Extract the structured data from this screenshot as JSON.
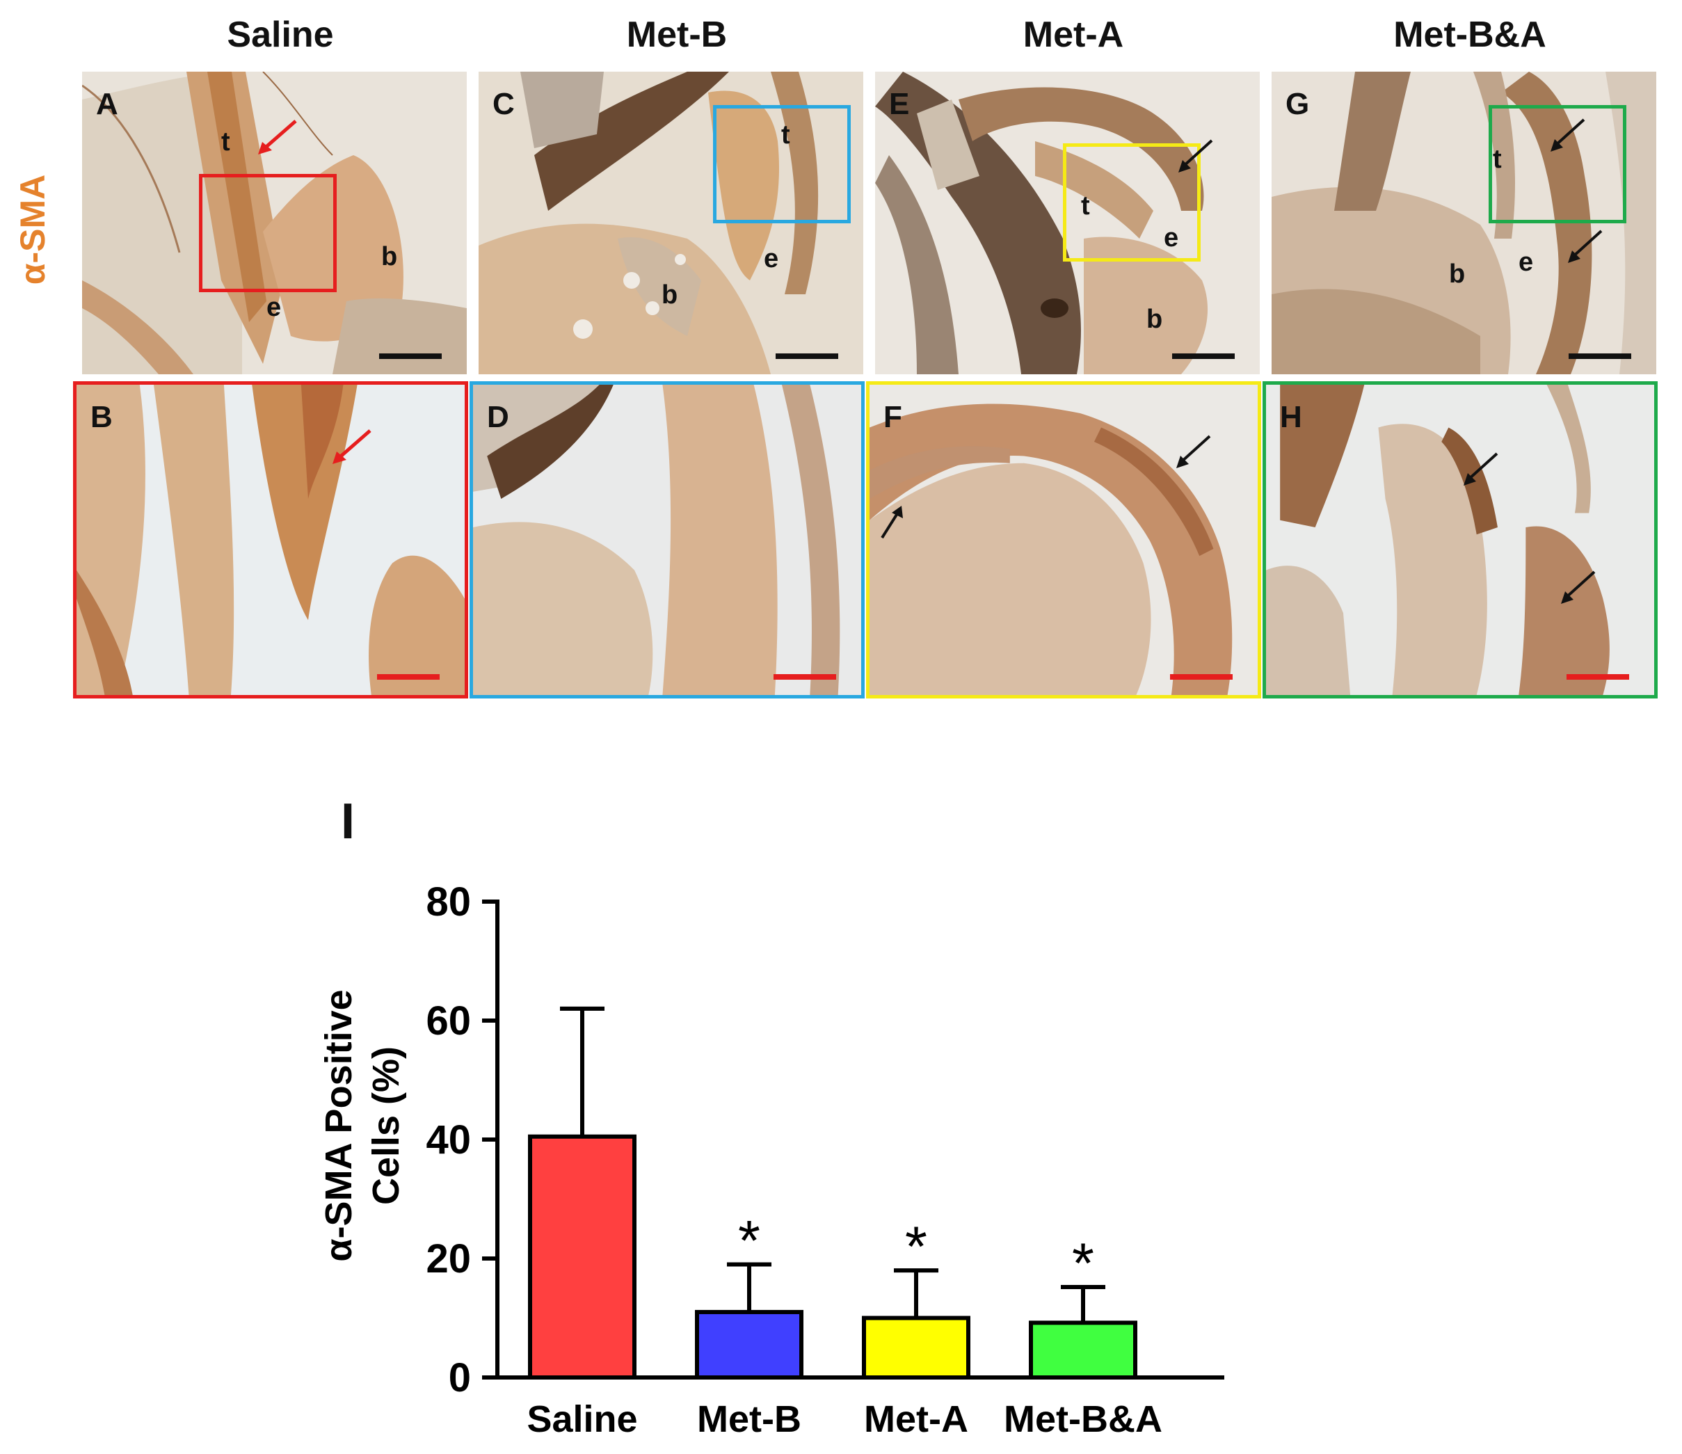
{
  "figure": {
    "row_label": "α-SMA",
    "columns": [
      {
        "title": "Saline",
        "color": "#e61e1e"
      },
      {
        "title": "Met-B",
        "color": "#29a8e0"
      },
      {
        "title": "Met-A",
        "color": "#f5ea16"
      },
      {
        "title": "Met-B&A",
        "color": "#1eaa4b"
      }
    ],
    "panels_top": [
      {
        "letter": "A",
        "labels": {
          "t": "t",
          "e": "e",
          "b": "b"
        }
      },
      {
        "letter": "C",
        "labels": {
          "t": "t",
          "e": "e",
          "b": "b"
        }
      },
      {
        "letter": "E",
        "labels": {
          "t": "t",
          "e": "e",
          "b": "b"
        }
      },
      {
        "letter": "G",
        "labels": {
          "t": "t",
          "e": "e",
          "b": "b"
        }
      }
    ],
    "panels_bottom": [
      {
        "letter": "B"
      },
      {
        "letter": "D"
      },
      {
        "letter": "F"
      },
      {
        "letter": "H"
      }
    ],
    "chart_letter": "I"
  },
  "chart_data": {
    "type": "bar",
    "categories": [
      "Saline",
      "Met-B",
      "Met-A",
      "Met-B&A"
    ],
    "values": [
      40.5,
      11,
      10,
      9.2
    ],
    "errors": [
      21.5,
      8,
      8,
      6
    ],
    "significance": [
      "",
      "*",
      "*",
      "*"
    ],
    "colors": [
      "#ff4040",
      "#4040ff",
      "#ffff00",
      "#40ff40"
    ],
    "ylabel_lines": [
      "α-SMA Positive",
      "Cells (%)"
    ],
    "yticks": [
      0,
      20,
      40,
      60,
      80
    ],
    "ylim": [
      0,
      80
    ],
    "grid": false
  }
}
